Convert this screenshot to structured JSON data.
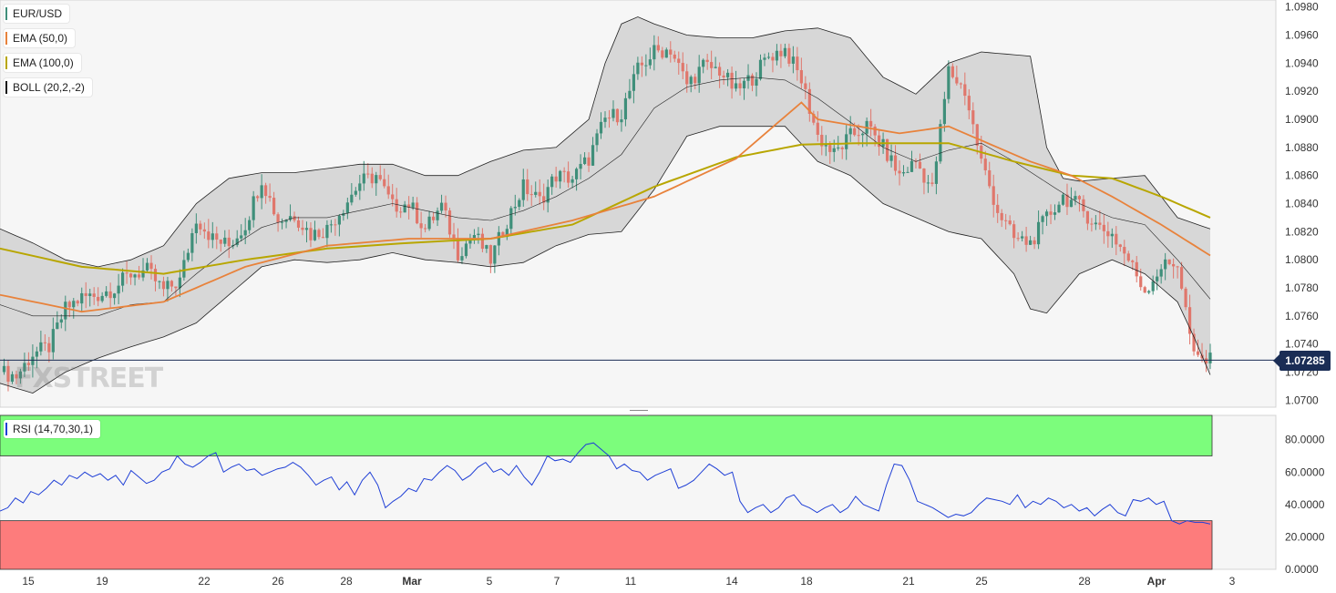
{
  "legends": {
    "pair": "EUR/USD",
    "ema50": "EMA (50,0)",
    "ema100": "EMA (100,0)",
    "boll": "BOLL (20,2,-2)",
    "rsi": "RSI (14,70,30,1)"
  },
  "watermark": "FXSTREET",
  "last_price_label": "1.07285",
  "colors": {
    "bull": "#3f8f7a",
    "bear": "#e0776c",
    "ema50": "#e8823b",
    "ema100": "#b8a600",
    "boll": "#222222",
    "rsi": "#1f3fd6",
    "overbought_zone": "#7cfd7c",
    "oversold_zone": "#fd7c7c",
    "last_price_line": "#1a2d55"
  },
  "chart_data": [
    {
      "type": "candlestick",
      "title": "EUR/USD",
      "timeframe_note": "",
      "ylim": [
        1.0695,
        1.0985
      ],
      "y_ticks": [
        "1.0700",
        "1.0720",
        "1.0740",
        "1.0760",
        "1.0780",
        "1.0800",
        "1.0820",
        "1.0840",
        "1.0860",
        "1.0880",
        "1.0900",
        "1.0920",
        "1.0940",
        "1.0960",
        "1.0980"
      ],
      "x_tick_labels": [
        "15",
        "19",
        "22",
        "26",
        "28",
        "Mar",
        "5",
        "7",
        "11",
        "14",
        "18",
        "21",
        "25",
        "28",
        "Apr",
        "3"
      ],
      "last_price": 1.07285,
      "ohlc_close_path": [
        [
          0,
          1.072
        ],
        [
          4,
          1.0717
        ],
        [
          8,
          1.0733
        ],
        [
          12,
          1.0738
        ],
        [
          16,
          1.0765
        ],
        [
          20,
          1.0773
        ],
        [
          24,
          1.0775
        ],
        [
          28,
          1.078
        ],
        [
          32,
          1.079
        ],
        [
          36,
          1.0792
        ],
        [
          40,
          1.0778
        ],
        [
          44,
          1.0785
        ],
        [
          48,
          1.083
        ],
        [
          52,
          1.0815
        ],
        [
          56,
          1.081
        ],
        [
          60,
          1.0825
        ],
        [
          64,
          1.0858
        ],
        [
          68,
          1.0828
        ],
        [
          72,
          1.0832
        ],
        [
          76,
          1.0818
        ],
        [
          80,
          1.0822
        ],
        [
          84,
          1.0838
        ],
        [
          88,
          1.0855
        ],
        [
          92,
          1.086
        ],
        [
          96,
          1.0838
        ],
        [
          100,
          1.084
        ],
        [
          104,
          1.0822
        ],
        [
          108,
          1.0838
        ],
        [
          112,
          1.0805
        ],
        [
          116,
          1.0818
        ],
        [
          120,
          1.08
        ],
        [
          124,
          1.0828
        ],
        [
          128,
          1.0852
        ],
        [
          132,
          1.0842
        ],
        [
          136,
          1.086
        ],
        [
          140,
          1.0858
        ],
        [
          144,
          1.0872
        ],
        [
          148,
          1.09
        ],
        [
          152,
          1.0905
        ],
        [
          156,
          1.0935
        ],
        [
          160,
          1.0948
        ],
        [
          164,
          1.095
        ],
        [
          168,
          1.0925
        ],
        [
          172,
          1.0938
        ],
        [
          176,
          1.0935
        ],
        [
          180,
          1.092
        ],
        [
          184,
          1.093
        ],
        [
          188,
          1.0945
        ],
        [
          192,
          1.095
        ],
        [
          196,
          1.0928
        ],
        [
          200,
          1.0888
        ],
        [
          204,
          1.0875
        ],
        [
          208,
          1.0888
        ],
        [
          212,
          1.0895
        ],
        [
          216,
          1.088
        ],
        [
          220,
          1.086
        ],
        [
          224,
          1.087
        ],
        [
          228,
          1.085
        ],
        [
          232,
          1.0935
        ],
        [
          236,
          1.092
        ],
        [
          240,
          1.087
        ],
        [
          244,
          1.0835
        ],
        [
          248,
          1.0815
        ],
        [
          252,
          1.0812
        ],
        [
          256,
          1.083
        ],
        [
          260,
          1.0845
        ],
        [
          264,
          1.0838
        ],
        [
          268,
          1.0825
        ],
        [
          272,
          1.0818
        ],
        [
          276,
          1.08
        ],
        [
          280,
          1.0778
        ],
        [
          284,
          1.0795
        ],
        [
          288,
          1.0798
        ],
        [
          292,
          1.073
        ],
        [
          296,
          1.0728
        ]
      ],
      "ema50_path": [
        [
          0,
          1.0775
        ],
        [
          20,
          1.0763
        ],
        [
          40,
          1.077
        ],
        [
          60,
          1.0795
        ],
        [
          80,
          1.081
        ],
        [
          100,
          1.0815
        ],
        [
          120,
          1.0815
        ],
        [
          140,
          1.0828
        ],
        [
          160,
          1.0845
        ],
        [
          180,
          1.0872
        ],
        [
          196,
          1.0912
        ],
        [
          200,
          1.09
        ],
        [
          210,
          1.0895
        ],
        [
          220,
          1.089
        ],
        [
          232,
          1.0895
        ],
        [
          240,
          1.0885
        ],
        [
          252,
          1.087
        ],
        [
          262,
          1.086
        ],
        [
          272,
          1.0845
        ],
        [
          284,
          1.0825
        ],
        [
          296,
          1.0803
        ]
      ],
      "ema100_path": [
        [
          0,
          1.0808
        ],
        [
          20,
          1.0795
        ],
        [
          40,
          1.079
        ],
        [
          60,
          1.08
        ],
        [
          80,
          1.0808
        ],
        [
          100,
          1.0812
        ],
        [
          120,
          1.0815
        ],
        [
          140,
          1.0825
        ],
        [
          160,
          1.0852
        ],
        [
          180,
          1.0873
        ],
        [
          196,
          1.0882
        ],
        [
          210,
          1.0883
        ],
        [
          232,
          1.0883
        ],
        [
          248,
          1.087
        ],
        [
          262,
          1.086
        ],
        [
          272,
          1.0858
        ],
        [
          284,
          1.0845
        ],
        [
          296,
          1.083
        ]
      ],
      "boll_upper_path": [
        [
          0,
          1.0822
        ],
        [
          8,
          1.0812
        ],
        [
          16,
          1.08
        ],
        [
          24,
          1.0795
        ],
        [
          32,
          1.08
        ],
        [
          40,
          1.081
        ],
        [
          48,
          1.084
        ],
        [
          56,
          1.0858
        ],
        [
          64,
          1.0862
        ],
        [
          72,
          1.0862
        ],
        [
          80,
          1.0865
        ],
        [
          88,
          1.0868
        ],
        [
          96,
          1.0868
        ],
        [
          104,
          1.086
        ],
        [
          112,
          1.086
        ],
        [
          120,
          1.087
        ],
        [
          128,
          1.0878
        ],
        [
          136,
          1.088
        ],
        [
          144,
          1.09
        ],
        [
          148,
          1.094
        ],
        [
          152,
          1.0968
        ],
        [
          156,
          1.0973
        ],
        [
          160,
          1.0968
        ],
        [
          168,
          1.096
        ],
        [
          176,
          1.0958
        ],
        [
          184,
          1.0958
        ],
        [
          192,
          1.0963
        ],
        [
          200,
          1.0965
        ],
        [
          208,
          1.0958
        ],
        [
          216,
          1.093
        ],
        [
          224,
          1.0918
        ],
        [
          232,
          1.094
        ],
        [
          240,
          1.0948
        ],
        [
          248,
          1.0946
        ],
        [
          252,
          1.0945
        ],
        [
          256,
          1.088
        ],
        [
          260,
          1.0858
        ],
        [
          264,
          1.0856
        ],
        [
          272,
          1.0858
        ],
        [
          280,
          1.086
        ],
        [
          288,
          1.083
        ],
        [
          296,
          1.0822
        ]
      ],
      "boll_mid_path": [
        [
          0,
          1.0768
        ],
        [
          8,
          1.076
        ],
        [
          16,
          1.076
        ],
        [
          24,
          1.076
        ],
        [
          32,
          1.0768
        ],
        [
          40,
          1.077
        ],
        [
          48,
          1.079
        ],
        [
          56,
          1.0808
        ],
        [
          64,
          1.0823
        ],
        [
          72,
          1.083
        ],
        [
          80,
          1.083
        ],
        [
          88,
          1.0835
        ],
        [
          96,
          1.084
        ],
        [
          104,
          1.0835
        ],
        [
          112,
          1.083
        ],
        [
          120,
          1.0828
        ],
        [
          128,
          1.0835
        ],
        [
          136,
          1.0845
        ],
        [
          144,
          1.0858
        ],
        [
          152,
          1.0875
        ],
        [
          160,
          1.0908
        ],
        [
          168,
          1.0923
        ],
        [
          176,
          1.0928
        ],
        [
          184,
          1.093
        ],
        [
          192,
          1.0928
        ],
        [
          200,
          1.0915
        ],
        [
          208,
          1.0898
        ],
        [
          216,
          1.088
        ],
        [
          224,
          1.087
        ],
        [
          232,
          1.0878
        ],
        [
          240,
          1.0883
        ],
        [
          248,
          1.087
        ],
        [
          256,
          1.0855
        ],
        [
          264,
          1.084
        ],
        [
          272,
          1.083
        ],
        [
          280,
          1.0825
        ],
        [
          288,
          1.08
        ],
        [
          296,
          1.0772
        ]
      ],
      "boll_lower_path": [
        [
          0,
          1.0712
        ],
        [
          8,
          1.0705
        ],
        [
          16,
          1.072
        ],
        [
          24,
          1.073
        ],
        [
          32,
          1.0738
        ],
        [
          40,
          1.0745
        ],
        [
          48,
          1.0755
        ],
        [
          56,
          1.0775
        ],
        [
          64,
          1.0795
        ],
        [
          72,
          1.08
        ],
        [
          80,
          1.0798
        ],
        [
          88,
          1.08
        ],
        [
          96,
          1.0805
        ],
        [
          104,
          1.08
        ],
        [
          112,
          1.0798
        ],
        [
          120,
          1.0795
        ],
        [
          128,
          1.0798
        ],
        [
          136,
          1.081
        ],
        [
          144,
          1.0818
        ],
        [
          152,
          1.082
        ],
        [
          160,
          1.085
        ],
        [
          168,
          1.0888
        ],
        [
          176,
          1.0895
        ],
        [
          184,
          1.0895
        ],
        [
          192,
          1.0895
        ],
        [
          200,
          1.087
        ],
        [
          208,
          1.086
        ],
        [
          216,
          1.084
        ],
        [
          224,
          1.083
        ],
        [
          232,
          1.082
        ],
        [
          240,
          1.0815
        ],
        [
          248,
          1.079
        ],
        [
          252,
          1.0765
        ],
        [
          256,
          1.0762
        ],
        [
          264,
          1.079
        ],
        [
          272,
          1.08
        ],
        [
          280,
          1.079
        ],
        [
          288,
          1.077
        ],
        [
          292,
          1.0745
        ],
        [
          296,
          1.0718
        ]
      ]
    },
    {
      "type": "line",
      "title": "RSI (14,70,30,1)",
      "ylim": [
        0,
        95
      ],
      "y_ticks": [
        "0.0000",
        "20.0000",
        "40.0000",
        "60.0000",
        "80.0000"
      ],
      "overbought": 70,
      "oversold": 30,
      "values": [
        36,
        38,
        44,
        41,
        48,
        46,
        50,
        55,
        52,
        58,
        56,
        60,
        57,
        59,
        55,
        58,
        52,
        61,
        57,
        53,
        55,
        60,
        62,
        70,
        65,
        63,
        66,
        70,
        72,
        60,
        63,
        65,
        61,
        62,
        58,
        60,
        62,
        63,
        66,
        63,
        58,
        52,
        55,
        57,
        49,
        54,
        46,
        55,
        60,
        52,
        38,
        42,
        45,
        50,
        48,
        56,
        55,
        60,
        64,
        61,
        55,
        58,
        63,
        66,
        60,
        62,
        58,
        64,
        57,
        52,
        60,
        70,
        67,
        68,
        66,
        72,
        77,
        78,
        74,
        70,
        62,
        65,
        61,
        60,
        55,
        58,
        60,
        62,
        50,
        52,
        55,
        60,
        65,
        62,
        58,
        60,
        42,
        35,
        38,
        40,
        35,
        38,
        44,
        46,
        40,
        38,
        35,
        38,
        40,
        35,
        38,
        45,
        40,
        38,
        36,
        52,
        65,
        64,
        55,
        42,
        40,
        38,
        35,
        32,
        34,
        33,
        35,
        40,
        44,
        43,
        42,
        40,
        46,
        38,
        42,
        40,
        44,
        42,
        38,
        40,
        36,
        38,
        33,
        37,
        40,
        35,
        33,
        43,
        42,
        44,
        40,
        42,
        30,
        28,
        30,
        29,
        29,
        28
      ]
    }
  ]
}
